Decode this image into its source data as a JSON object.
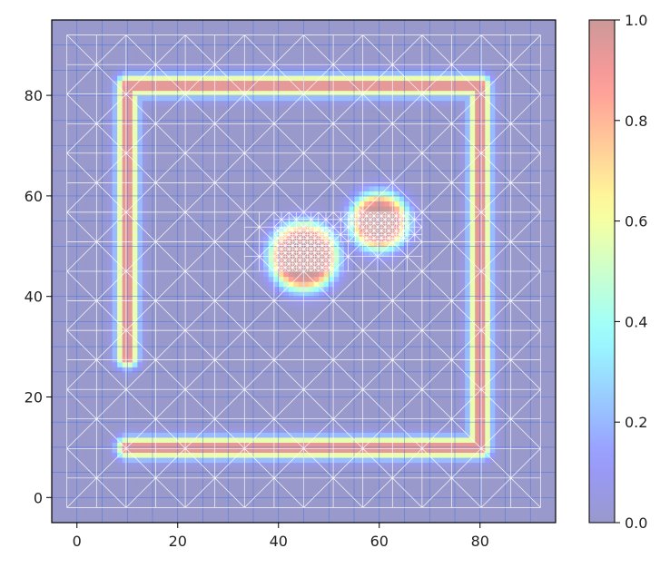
{
  "chart_data": {
    "type": "heatmap",
    "title": "",
    "xlabel": "",
    "ylabel": "",
    "xlim": [
      -5,
      95
    ],
    "ylim": [
      -5,
      95
    ],
    "x_ticks": [
      {
        "value": 0,
        "label": "0"
      },
      {
        "value": 20,
        "label": "20"
      },
      {
        "value": 40,
        "label": "40"
      },
      {
        "value": 60,
        "label": "60"
      },
      {
        "value": 80,
        "label": "80"
      }
    ],
    "y_ticks": [
      {
        "value": 0,
        "label": "0"
      },
      {
        "value": 20,
        "label": "20"
      },
      {
        "value": 40,
        "label": "40"
      },
      {
        "value": 60,
        "label": "60"
      },
      {
        "value": 80,
        "label": "80"
      }
    ],
    "mesh_extent": {
      "x": [
        -2,
        92
      ],
      "y": [
        -2,
        92
      ]
    },
    "field_range": [
      0.0,
      1.0
    ],
    "colormap": "jet",
    "colormap_alpha": 0.4,
    "mesh_edge_color": "#ffffff",
    "background_grid_color": "#3b6fe0",
    "high_value_regions": [
      {
        "kind": "segment",
        "from": [
          10,
          28
        ],
        "to": [
          10,
          82
        ],
        "value": 1.0
      },
      {
        "kind": "segment",
        "from": [
          10,
          82
        ],
        "to": [
          80,
          82
        ],
        "value": 1.0
      },
      {
        "kind": "segment",
        "from": [
          80,
          82
        ],
        "to": [
          80,
          10
        ],
        "value": 1.0
      },
      {
        "kind": "segment",
        "from": [
          80,
          10
        ],
        "to": [
          10,
          10
        ],
        "value": 1.0
      },
      {
        "kind": "blob",
        "center": [
          45,
          48
        ],
        "radius": 7,
        "value": 1.0
      },
      {
        "kind": "blob",
        "center": [
          60,
          55
        ],
        "radius": 5,
        "value": 1.0
      }
    ],
    "colorbar": {
      "range": [
        0.0,
        1.0
      ],
      "ticks": [
        {
          "value": 0.0,
          "label": "0.0"
        },
        {
          "value": 0.2,
          "label": "0.2"
        },
        {
          "value": 0.4,
          "label": "0.4"
        },
        {
          "value": 0.6,
          "label": "0.6"
        },
        {
          "value": 0.8,
          "label": "0.8"
        },
        {
          "value": 1.0,
          "label": "1.0"
        }
      ]
    }
  }
}
